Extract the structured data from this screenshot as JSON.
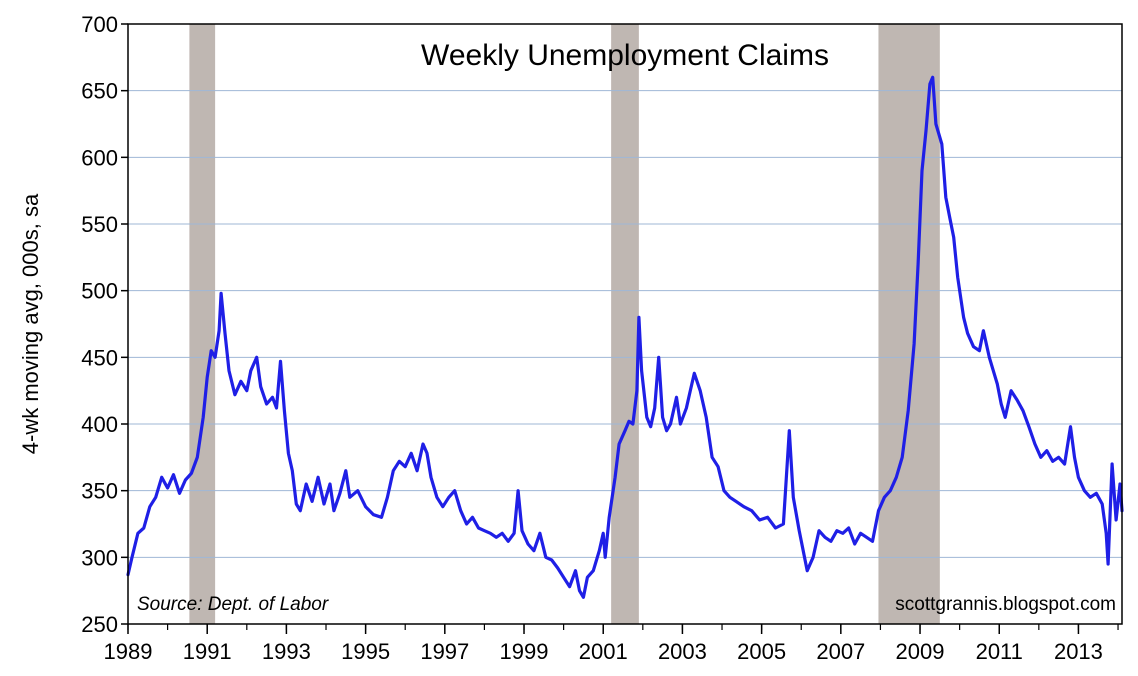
{
  "chart_data": {
    "type": "line",
    "title": "Weekly Unemployment Claims",
    "ylabel": "4-wk moving avg, 000s, sa",
    "xlabel": "",
    "source": "Source: Dept. of Labor",
    "credit": "scottgrannis.blogspot.com",
    "xlim": [
      1989.0,
      2014.1
    ],
    "ylim": [
      250,
      700
    ],
    "x_ticks": [
      1989,
      1991,
      1993,
      1995,
      1997,
      1999,
      2001,
      2003,
      2005,
      2007,
      2009,
      2011,
      2013
    ],
    "y_ticks": [
      250,
      300,
      350,
      400,
      450,
      500,
      550,
      600,
      650,
      700
    ],
    "grid": {
      "horizontal": true,
      "vertical": false
    },
    "colors": {
      "line": "#1f1fe6",
      "recession": "#bfb7b2",
      "grid": "#9fb7d6"
    },
    "recessions": [
      [
        1990.55,
        1991.2
      ],
      [
        2001.2,
        2001.9
      ],
      [
        2007.95,
        2009.5
      ]
    ],
    "series": [
      {
        "values": [
          [
            1989.0,
            287
          ],
          [
            1989.1,
            300
          ],
          [
            1989.25,
            318
          ],
          [
            1989.4,
            322
          ],
          [
            1989.55,
            338
          ],
          [
            1989.7,
            345
          ],
          [
            1989.85,
            360
          ],
          [
            1990.0,
            352
          ],
          [
            1990.15,
            362
          ],
          [
            1990.3,
            348
          ],
          [
            1990.45,
            358
          ],
          [
            1990.6,
            363
          ],
          [
            1990.75,
            375
          ],
          [
            1990.9,
            405
          ],
          [
            1991.0,
            435
          ],
          [
            1991.1,
            455
          ],
          [
            1991.2,
            450
          ],
          [
            1991.3,
            470
          ],
          [
            1991.35,
            498
          ],
          [
            1991.45,
            468
          ],
          [
            1991.55,
            440
          ],
          [
            1991.7,
            422
          ],
          [
            1991.85,
            432
          ],
          [
            1992.0,
            425
          ],
          [
            1992.1,
            440
          ],
          [
            1992.25,
            450
          ],
          [
            1992.35,
            428
          ],
          [
            1992.5,
            415
          ],
          [
            1992.65,
            420
          ],
          [
            1992.75,
            412
          ],
          [
            1992.85,
            447
          ],
          [
            1992.95,
            410
          ],
          [
            1993.05,
            378
          ],
          [
            1993.15,
            365
          ],
          [
            1993.25,
            340
          ],
          [
            1993.35,
            335
          ],
          [
            1993.5,
            355
          ],
          [
            1993.65,
            342
          ],
          [
            1993.8,
            360
          ],
          [
            1993.95,
            340
          ],
          [
            1994.1,
            355
          ],
          [
            1994.2,
            335
          ],
          [
            1994.35,
            348
          ],
          [
            1994.5,
            365
          ],
          [
            1994.6,
            345
          ],
          [
            1994.8,
            350
          ],
          [
            1995.0,
            338
          ],
          [
            1995.2,
            332
          ],
          [
            1995.4,
            330
          ],
          [
            1995.55,
            345
          ],
          [
            1995.7,
            365
          ],
          [
            1995.85,
            372
          ],
          [
            1996.0,
            368
          ],
          [
            1996.15,
            378
          ],
          [
            1996.3,
            365
          ],
          [
            1996.45,
            385
          ],
          [
            1996.55,
            378
          ],
          [
            1996.65,
            360
          ],
          [
            1996.8,
            345
          ],
          [
            1996.95,
            338
          ],
          [
            1997.1,
            345
          ],
          [
            1997.25,
            350
          ],
          [
            1997.4,
            335
          ],
          [
            1997.55,
            325
          ],
          [
            1997.7,
            330
          ],
          [
            1997.85,
            322
          ],
          [
            1998.0,
            320
          ],
          [
            1998.15,
            318
          ],
          [
            1998.3,
            315
          ],
          [
            1998.45,
            318
          ],
          [
            1998.6,
            312
          ],
          [
            1998.75,
            318
          ],
          [
            1998.85,
            350
          ],
          [
            1998.95,
            320
          ],
          [
            1999.1,
            310
          ],
          [
            1999.25,
            305
          ],
          [
            1999.4,
            318
          ],
          [
            1999.55,
            300
          ],
          [
            1999.7,
            298
          ],
          [
            1999.85,
            292
          ],
          [
            2000.0,
            285
          ],
          [
            2000.15,
            278
          ],
          [
            2000.3,
            290
          ],
          [
            2000.4,
            275
          ],
          [
            2000.5,
            270
          ],
          [
            2000.6,
            285
          ],
          [
            2000.75,
            290
          ],
          [
            2000.9,
            305
          ],
          [
            2001.0,
            318
          ],
          [
            2001.05,
            300
          ],
          [
            2001.15,
            330
          ],
          [
            2001.3,
            360
          ],
          [
            2001.4,
            385
          ],
          [
            2001.55,
            395
          ],
          [
            2001.65,
            402
          ],
          [
            2001.75,
            400
          ],
          [
            2001.85,
            425
          ],
          [
            2001.9,
            480
          ],
          [
            2001.97,
            440
          ],
          [
            2002.1,
            405
          ],
          [
            2002.2,
            398
          ],
          [
            2002.3,
            412
          ],
          [
            2002.4,
            450
          ],
          [
            2002.5,
            405
          ],
          [
            2002.6,
            395
          ],
          [
            2002.7,
            400
          ],
          [
            2002.85,
            420
          ],
          [
            2002.95,
            400
          ],
          [
            2003.1,
            412
          ],
          [
            2003.2,
            425
          ],
          [
            2003.3,
            438
          ],
          [
            2003.45,
            425
          ],
          [
            2003.6,
            405
          ],
          [
            2003.75,
            375
          ],
          [
            2003.9,
            368
          ],
          [
            2004.05,
            350
          ],
          [
            2004.2,
            345
          ],
          [
            2004.35,
            342
          ],
          [
            2004.55,
            338
          ],
          [
            2004.75,
            335
          ],
          [
            2004.95,
            328
          ],
          [
            2005.15,
            330
          ],
          [
            2005.35,
            322
          ],
          [
            2005.55,
            325
          ],
          [
            2005.7,
            395
          ],
          [
            2005.8,
            345
          ],
          [
            2005.95,
            320
          ],
          [
            2006.05,
            305
          ],
          [
            2006.15,
            290
          ],
          [
            2006.3,
            300
          ],
          [
            2006.45,
            320
          ],
          [
            2006.6,
            315
          ],
          [
            2006.75,
            312
          ],
          [
            2006.9,
            320
          ],
          [
            2007.05,
            318
          ],
          [
            2007.2,
            322
          ],
          [
            2007.35,
            310
          ],
          [
            2007.5,
            318
          ],
          [
            2007.65,
            315
          ],
          [
            2007.8,
            312
          ],
          [
            2007.95,
            335
          ],
          [
            2008.1,
            345
          ],
          [
            2008.25,
            350
          ],
          [
            2008.4,
            360
          ],
          [
            2008.55,
            375
          ],
          [
            2008.7,
            410
          ],
          [
            2008.85,
            460
          ],
          [
            2008.95,
            520
          ],
          [
            2009.05,
            590
          ],
          [
            2009.15,
            620
          ],
          [
            2009.25,
            655
          ],
          [
            2009.32,
            660
          ],
          [
            2009.4,
            625
          ],
          [
            2009.55,
            610
          ],
          [
            2009.65,
            570
          ],
          [
            2009.75,
            555
          ],
          [
            2009.85,
            540
          ],
          [
            2009.95,
            510
          ],
          [
            2010.1,
            480
          ],
          [
            2010.2,
            468
          ],
          [
            2010.35,
            458
          ],
          [
            2010.5,
            455
          ],
          [
            2010.6,
            470
          ],
          [
            2010.75,
            450
          ],
          [
            2010.85,
            440
          ],
          [
            2010.95,
            430
          ],
          [
            2011.05,
            415
          ],
          [
            2011.15,
            405
          ],
          [
            2011.3,
            425
          ],
          [
            2011.45,
            418
          ],
          [
            2011.6,
            410
          ],
          [
            2011.75,
            398
          ],
          [
            2011.9,
            385
          ],
          [
            2012.05,
            375
          ],
          [
            2012.2,
            380
          ],
          [
            2012.35,
            372
          ],
          [
            2012.5,
            375
          ],
          [
            2012.65,
            370
          ],
          [
            2012.8,
            398
          ],
          [
            2012.9,
            375
          ],
          [
            2013.0,
            360
          ],
          [
            2013.15,
            350
          ],
          [
            2013.3,
            345
          ],
          [
            2013.45,
            348
          ],
          [
            2013.6,
            340
          ],
          [
            2013.7,
            318
          ],
          [
            2013.75,
            295
          ],
          [
            2013.85,
            370
          ],
          [
            2013.95,
            328
          ],
          [
            2014.05,
            355
          ],
          [
            2014.1,
            335
          ]
        ]
      }
    ]
  }
}
